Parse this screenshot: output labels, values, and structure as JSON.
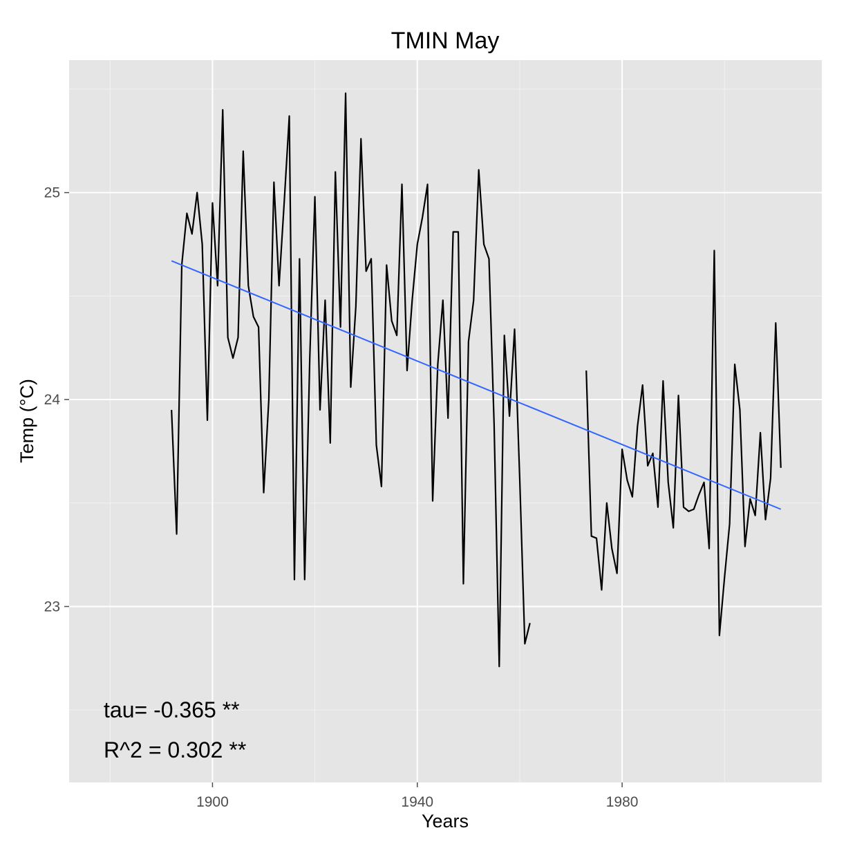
{
  "chart_data": {
    "type": "line",
    "title": "TMIN May",
    "xlabel": "Years",
    "ylabel": "Temp (°C)",
    "xlim": [
      1872,
      2019
    ],
    "ylim": [
      22.15,
      25.64
    ],
    "x_ticks": [
      1900,
      1940,
      1980
    ],
    "y_ticks": [
      23,
      24,
      25
    ],
    "x_tick_labels": [
      "1900",
      "1940",
      "1980"
    ],
    "y_tick_labels": [
      "23",
      "24",
      "25"
    ],
    "grid": true,
    "colors": {
      "panel": "#e5e5e5",
      "grid_major": "#ffffff",
      "grid_minor": "#f2f2f2",
      "series": "#000000",
      "trend": "#3366ff"
    },
    "series": [
      {
        "values": [
          [
            1892,
            23.95
          ],
          [
            1893,
            23.35
          ],
          [
            1894,
            24.65
          ],
          [
            1895,
            24.9
          ],
          [
            1896,
            24.8
          ],
          [
            1897,
            25.0
          ],
          [
            1898,
            24.75
          ],
          [
            1899,
            23.9
          ],
          [
            1900,
            24.95
          ],
          [
            1901,
            24.55
          ],
          [
            1902,
            25.4
          ],
          [
            1903,
            24.3
          ],
          [
            1904,
            24.2
          ],
          [
            1905,
            24.3
          ],
          [
            1906,
            25.2
          ],
          [
            1907,
            24.55
          ],
          [
            1908,
            24.4
          ],
          [
            1909,
            24.35
          ],
          [
            1910,
            23.55
          ],
          [
            1911,
            24.0
          ],
          [
            1912,
            25.05
          ],
          [
            1913,
            24.55
          ],
          [
            1914,
            24.95
          ],
          [
            1915,
            25.37
          ],
          [
            1916,
            23.13
          ],
          [
            1917,
            24.68
          ],
          [
            1918,
            23.13
          ],
          [
            1919,
            24.2
          ],
          [
            1920,
            24.98
          ],
          [
            1921,
            23.95
          ],
          [
            1922,
            24.48
          ],
          [
            1923,
            23.79
          ],
          [
            1924,
            25.1
          ],
          [
            1925,
            24.35
          ],
          [
            1926,
            25.48
          ],
          [
            1927,
            24.06
          ],
          [
            1928,
            24.45
          ],
          [
            1929,
            25.26
          ],
          [
            1930,
            24.62
          ],
          [
            1931,
            24.68
          ],
          [
            1932,
            23.78
          ],
          [
            1933,
            23.58
          ],
          [
            1934,
            24.65
          ],
          [
            1935,
            24.38
          ],
          [
            1936,
            24.31
          ],
          [
            1937,
            25.04
          ],
          [
            1938,
            24.14
          ],
          [
            1939,
            24.48
          ],
          [
            1940,
            24.75
          ],
          [
            1941,
            24.88
          ],
          [
            1942,
            25.04
          ],
          [
            1943,
            23.51
          ],
          [
            1944,
            24.17
          ],
          [
            1945,
            24.48
          ],
          [
            1946,
            23.91
          ],
          [
            1947,
            24.81
          ],
          [
            1948,
            24.81
          ],
          [
            1949,
            23.11
          ],
          [
            1950,
            24.28
          ],
          [
            1951,
            24.48
          ],
          [
            1952,
            25.11
          ],
          [
            1953,
            24.75
          ],
          [
            1954,
            24.68
          ],
          [
            1955,
            23.88
          ],
          [
            1956,
            22.71
          ],
          [
            1957,
            24.31
          ],
          [
            1958,
            23.92
          ],
          [
            1959,
            24.34
          ],
          [
            1960,
            23.62
          ],
          [
            1961,
            22.82
          ],
          [
            1962,
            22.92
          ],
          null,
          [
            1973,
            24.14
          ],
          [
            1974,
            23.34
          ],
          [
            1975,
            23.33
          ],
          [
            1976,
            23.08
          ],
          [
            1977,
            23.5
          ],
          [
            1978,
            23.28
          ],
          [
            1979,
            23.16
          ],
          [
            1980,
            23.76
          ],
          [
            1981,
            23.61
          ],
          [
            1982,
            23.53
          ],
          [
            1983,
            23.87
          ],
          [
            1984,
            24.07
          ],
          [
            1985,
            23.68
          ],
          [
            1986,
            23.74
          ],
          [
            1987,
            23.48
          ],
          [
            1988,
            24.09
          ],
          [
            1989,
            23.6
          ],
          [
            1990,
            23.38
          ],
          [
            1991,
            24.02
          ],
          [
            1992,
            23.48
          ],
          [
            1993,
            23.46
          ],
          [
            1994,
            23.47
          ],
          [
            1995,
            23.54
          ],
          [
            1996,
            23.6
          ],
          [
            1997,
            23.28
          ],
          [
            1998,
            24.72
          ],
          [
            1999,
            22.86
          ],
          [
            2000,
            23.14
          ],
          [
            2001,
            23.4
          ],
          [
            2002,
            24.17
          ],
          [
            2003,
            23.95
          ],
          [
            2004,
            23.29
          ],
          [
            2005,
            23.52
          ],
          [
            2006,
            23.44
          ],
          [
            2007,
            23.84
          ],
          [
            2008,
            23.42
          ],
          [
            2009,
            23.62
          ],
          [
            2010,
            24.37
          ],
          [
            2011,
            23.67
          ]
        ]
      },
      {
        "values": [
          [
            1892,
            24.67
          ],
          [
            2011,
            23.47
          ]
        ]
      }
    ],
    "annotations": [
      "tau= -0.365 **",
      "R^2 =  0.302 **"
    ]
  }
}
